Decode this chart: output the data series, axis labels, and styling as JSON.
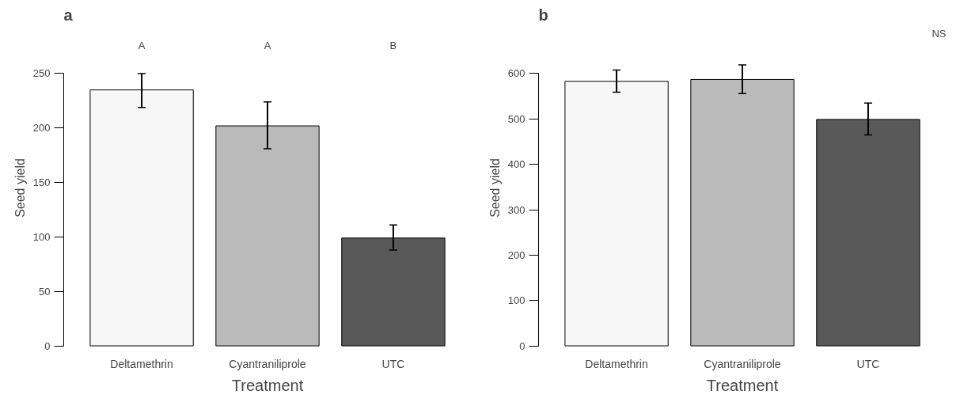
{
  "chart_data": [
    {
      "type": "bar",
      "title": "a",
      "xlabel": "Treatment",
      "ylabel": "Seed yield",
      "categories": [
        "Deltamethrin",
        "Cyantraniliprole",
        "UTC"
      ],
      "values": [
        235,
        202,
        99
      ],
      "colors": [
        "#f7f7f7",
        "#bababa",
        "#595959"
      ],
      "errors": [
        [
          219,
          250
        ],
        [
          181,
          224
        ],
        [
          88,
          111
        ]
      ],
      "ylim": [
        0,
        250
      ],
      "yticks": [
        0,
        50,
        100,
        150,
        200,
        250
      ],
      "grid": false,
      "annotations": [
        "A",
        "A",
        "B"
      ]
    },
    {
      "type": "bar",
      "title": "b",
      "xlabel": "Treatment",
      "ylabel": "Seed yield",
      "categories": [
        "Deltamethrin",
        "Cyantraniliprole",
        "UTC"
      ],
      "values": [
        583,
        587,
        499
      ],
      "colors": [
        "#f7f7f7",
        "#bababa",
        "#595959"
      ],
      "errors": [
        [
          559,
          608
        ],
        [
          556,
          619
        ],
        [
          465,
          535
        ]
      ],
      "ylim": [
        0,
        600
      ],
      "yticks": [
        0,
        100,
        200,
        300,
        400,
        500,
        600
      ],
      "grid": false,
      "annotations": [
        "NS"
      ]
    }
  ]
}
